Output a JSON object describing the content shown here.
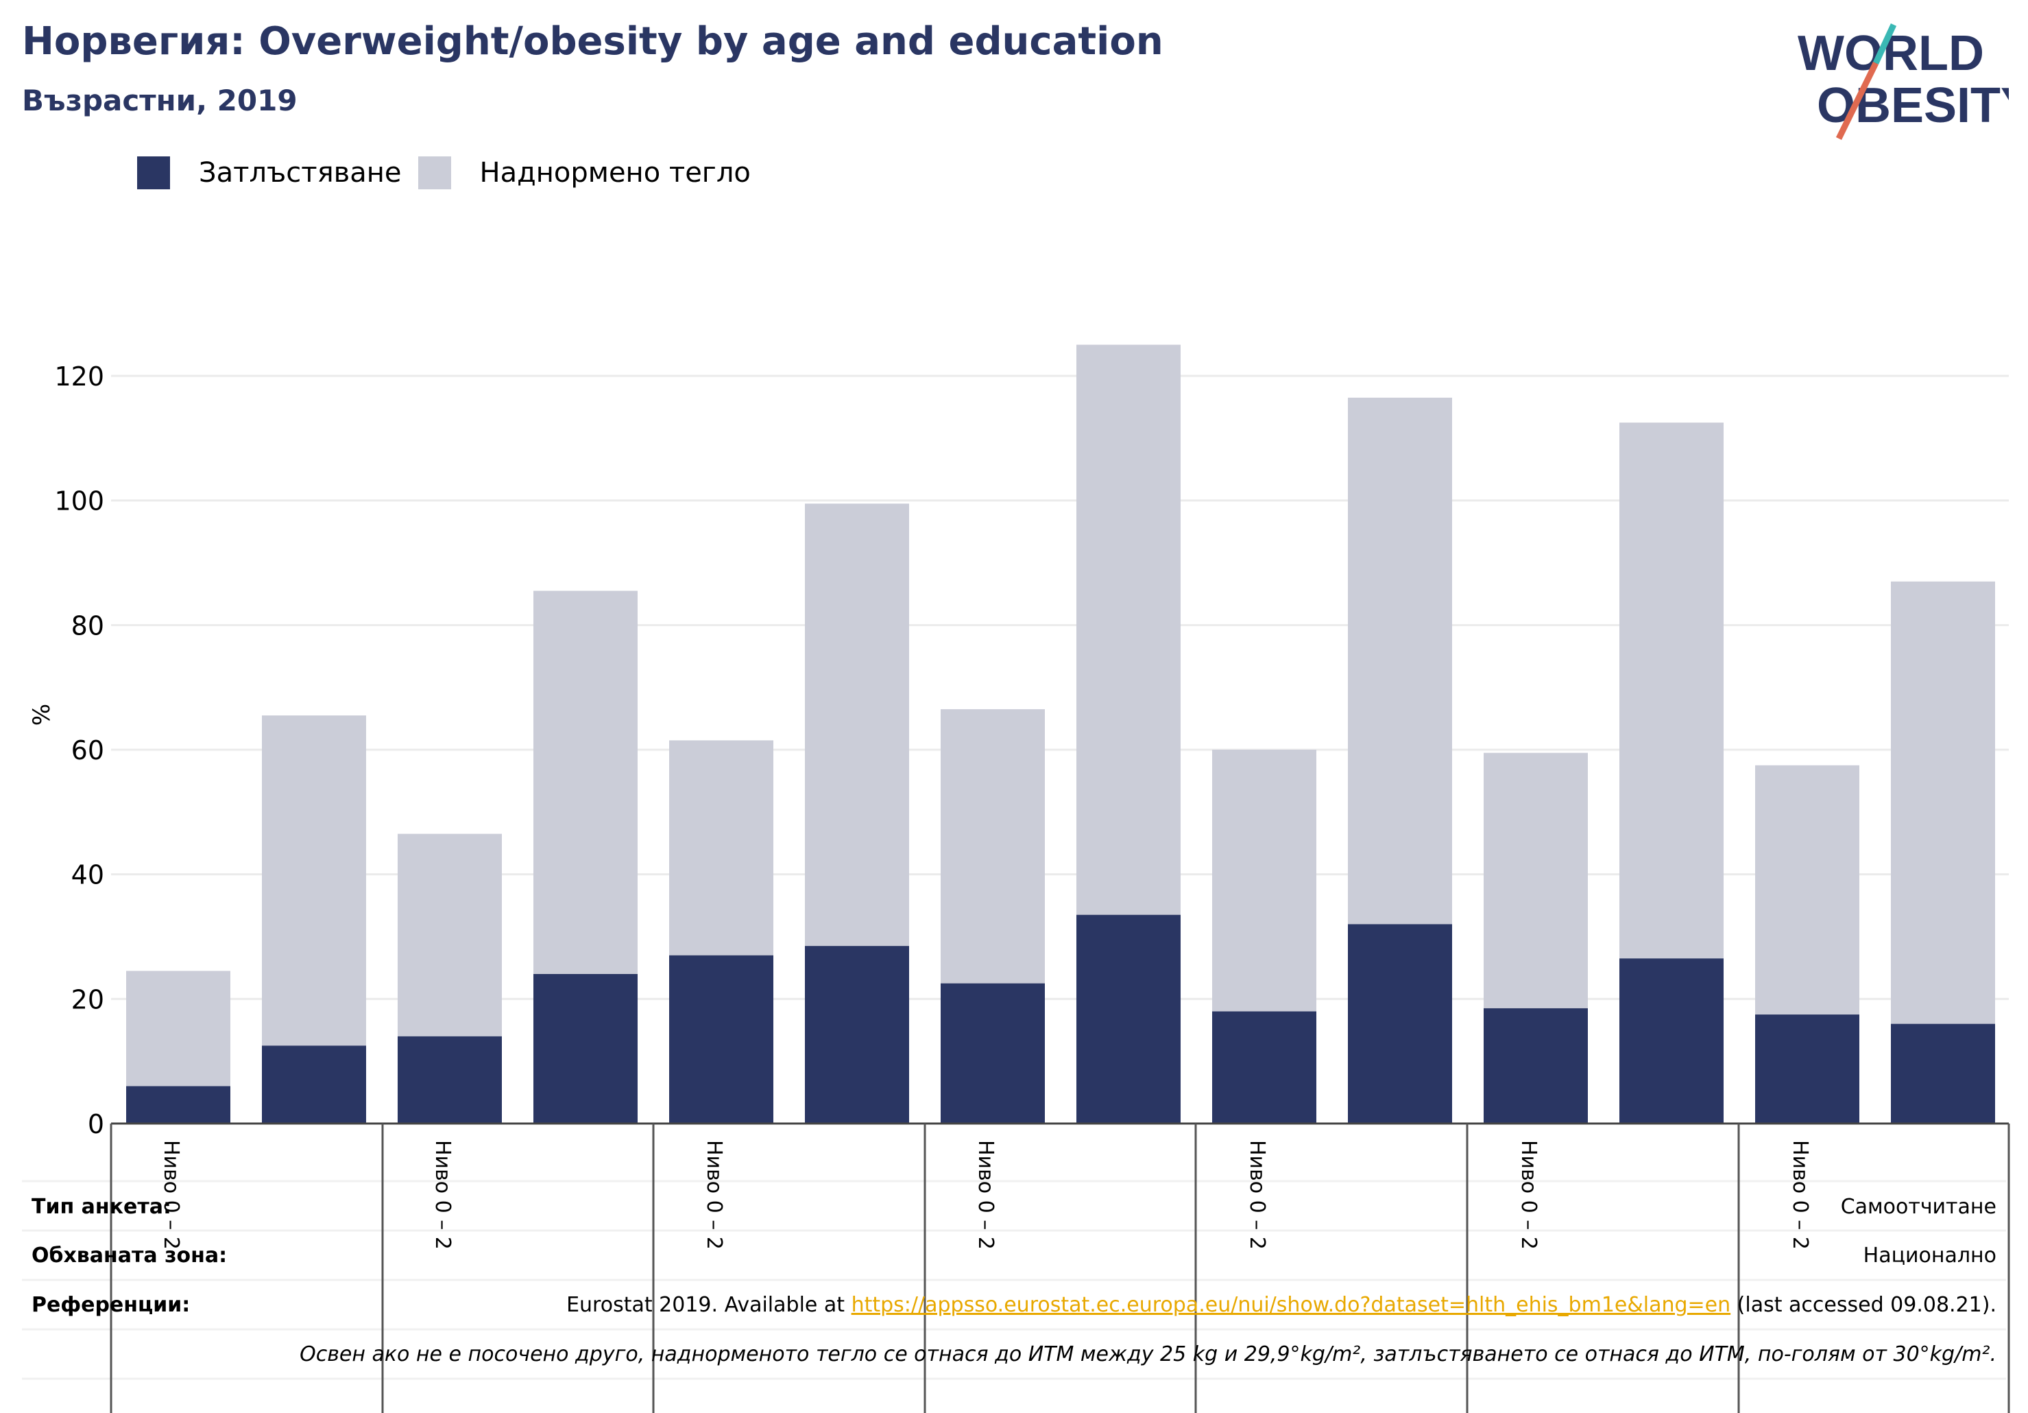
{
  "header": {
    "title": "Норвегия: Overweight/obesity by age and education",
    "subtitle": "Възрастни, 2019"
  },
  "logo": {
    "line1": "WORLD",
    "line2": "OBESITY"
  },
  "colors": {
    "obesity": "#2a3663",
    "overweight": "#cbcdd8",
    "title": "#2a3663",
    "link": "#e8a800",
    "grid": "#ebebeb",
    "logo_teal": "#3ab8b4",
    "logo_red": "#e06a50"
  },
  "chart_data": {
    "type": "bar",
    "stacked": true,
    "ylabel": "%",
    "ylim": [
      0,
      125
    ],
    "yticks": [
      0,
      20,
      40,
      60,
      80,
      100,
      120
    ],
    "grid": true,
    "legend_position": "top-left",
    "x_group_labels": [
      "Ниво 0 – 2",
      "Ниво 0 – 2",
      "Ниво 0 – 2",
      "Ниво 0 – 2",
      "Ниво 0 – 2",
      "Ниво 0 – 2",
      "Ниво 0 – 2"
    ],
    "series": [
      {
        "name": "Затлъстяване",
        "values": [
          6,
          12.5,
          14,
          24,
          27,
          28.5,
          22.5,
          33.5,
          18,
          32,
          18.5,
          26.5,
          17.5,
          16
        ]
      },
      {
        "name": "Наднормено тегло",
        "values": [
          18.5,
          53,
          32.5,
          61.5,
          34.5,
          71,
          44,
          91.5,
          42,
          84.5,
          41,
          86,
          40,
          71
        ]
      }
    ]
  },
  "info": {
    "survey_type_label": "Тип анкета:",
    "survey_type_value": "Самоотчитане",
    "coverage_label": "Обхваната зона:",
    "coverage_value": "Национално",
    "references_label": "Референции:",
    "references_prefix": "Eurostat 2019. Available at ",
    "references_link": "https://appsso.eurostat.ec.europa.eu/nui/show.do?dataset=hlth_ehis_bm1e&lang=en",
    "references_suffix": " (last accessed 09.08.21).",
    "footnote": "Освен ако не е посочено друго, наднорменото тегло се отнася до ИТМ между 25 kg и 29,9°kg/m², затлъстяването се отнася до ИТМ, по-голям от 30°kg/m²."
  }
}
